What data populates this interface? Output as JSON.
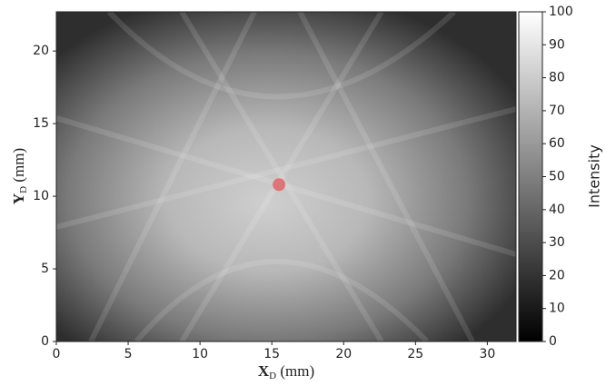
{
  "chart_data": {
    "type": "scatter",
    "xlabel": "X",
    "xlabel_subscript": "D",
    "xlabel_unit": "(mm)",
    "ylabel": "Y",
    "ylabel_subscript": "D",
    "ylabel_unit": "(mm)",
    "xlim": [
      0,
      32
    ],
    "xticks": [
      0,
      5,
      10,
      15,
      20,
      25,
      30
    ],
    "ylim": [
      0,
      22.7
    ],
    "yticks": [
      0,
      5,
      10,
      15,
      20
    ],
    "series": [
      {
        "color": "#e06a6a",
        "x": [
          15.5
        ],
        "values": [
          10.8
        ]
      }
    ],
    "colorbar": {
      "label": "Intensity",
      "lim": [
        0,
        100
      ],
      "ticks": [
        0,
        10,
        20,
        30,
        40,
        50,
        60,
        70,
        80,
        90,
        100
      ]
    }
  }
}
